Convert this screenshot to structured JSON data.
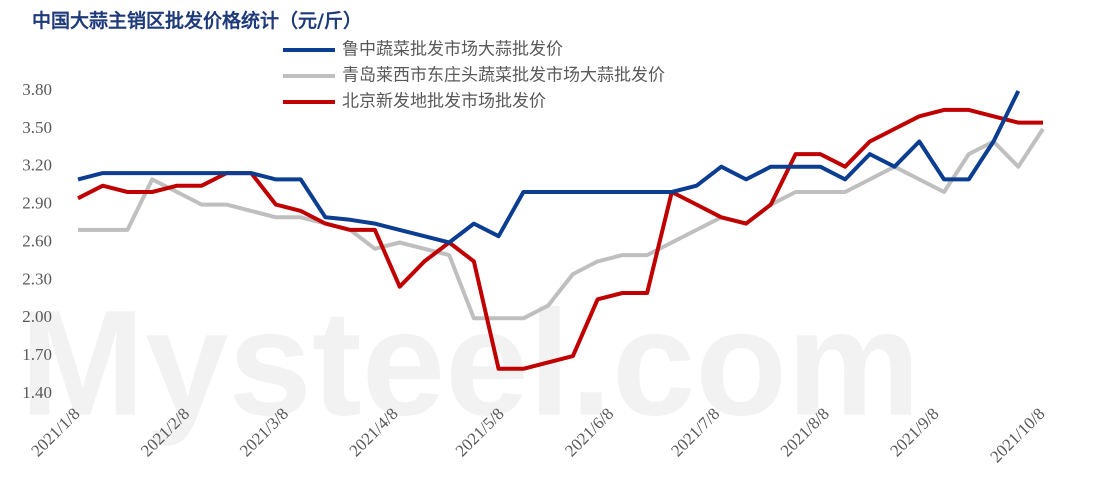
{
  "chart_data": {
    "type": "line",
    "title": "中国大蒜主销区批发价格统计（元/斤）",
    "watermark": "Mysteel.com",
    "x": [
      "2021/1/8",
      "2021/1/15",
      "2021/1/22",
      "2021/1/29",
      "2021/2/5",
      "2021/2/12",
      "2021/2/19",
      "2021/2/26",
      "2021/3/5",
      "2021/3/12",
      "2021/3/19",
      "2021/3/26",
      "2021/4/2",
      "2021/4/9",
      "2021/4/16",
      "2021/4/23",
      "2021/4/30",
      "2021/5/7",
      "2021/5/14",
      "2021/5/21",
      "2021/5/28",
      "2021/6/4",
      "2021/6/11",
      "2021/6/18",
      "2021/6/25",
      "2021/7/2",
      "2021/7/9",
      "2021/7/16",
      "2021/7/23",
      "2021/7/30",
      "2021/8/6",
      "2021/8/13",
      "2021/8/20",
      "2021/8/27",
      "2021/9/3",
      "2021/9/10",
      "2021/9/17",
      "2021/9/24",
      "2021/10/1",
      "2021/10/8"
    ],
    "series": [
      {
        "name": "鲁中蔬菜批发市场大蒜批发价",
        "color": "#0b3d91",
        "values": [
          3.1,
          3.15,
          3.15,
          3.15,
          3.15,
          3.15,
          3.15,
          3.15,
          3.1,
          3.1,
          2.8,
          2.78,
          2.75,
          2.7,
          2.65,
          2.6,
          2.75,
          2.65,
          3.0,
          3.0,
          3.0,
          3.0,
          3.0,
          3.0,
          3.0,
          3.05,
          3.2,
          3.1,
          3.2,
          3.2,
          3.2,
          3.1,
          3.3,
          3.2,
          3.4,
          3.1,
          3.1,
          3.4,
          3.8,
          null
        ]
      },
      {
        "name": "青岛莱西市东庄头蔬菜批发市场大蒜批发价",
        "color": "#bfbfbf",
        "values": [
          2.7,
          2.7,
          2.7,
          3.1,
          3.0,
          2.9,
          2.9,
          2.85,
          2.8,
          2.8,
          2.75,
          2.7,
          2.55,
          2.6,
          2.55,
          2.5,
          2.0,
          2.0,
          2.0,
          2.1,
          2.35,
          2.45,
          2.5,
          2.5,
          2.6,
          2.7,
          2.8,
          2.75,
          2.9,
          3.0,
          3.0,
          3.0,
          3.1,
          3.2,
          3.1,
          3.0,
          3.3,
          3.4,
          3.2,
          3.5
        ]
      },
      {
        "name": "北京新发地批发市场批发价",
        "color": "#c00000",
        "values": [
          2.95,
          3.05,
          3.0,
          3.0,
          3.05,
          3.05,
          3.15,
          3.15,
          2.9,
          2.85,
          2.75,
          2.7,
          2.7,
          2.25,
          2.45,
          2.6,
          2.45,
          1.6,
          1.6,
          1.65,
          1.7,
          2.15,
          2.2,
          2.2,
          3.0,
          2.9,
          2.8,
          2.75,
          2.9,
          3.3,
          3.3,
          3.2,
          3.4,
          3.5,
          3.6,
          3.65,
          3.65,
          3.6,
          3.55,
          3.55
        ]
      }
    ],
    "xlim": [
      "2021/1/8",
      "2021/10/8"
    ],
    "xticks": [
      "2021/1/8",
      "2021/2/8",
      "2021/3/8",
      "2021/4/8",
      "2021/5/8",
      "2021/6/8",
      "2021/7/8",
      "2021/8/8",
      "2021/9/8",
      "2021/10/8"
    ],
    "ylim": [
      1.4,
      3.8
    ],
    "yticks": [
      {
        "value": 1.4,
        "label": "1.40"
      },
      {
        "value": 1.7,
        "label": "1.70"
      },
      {
        "value": 2.0,
        "label": "2.00"
      },
      {
        "value": 2.3,
        "label": "2.30"
      },
      {
        "value": 2.6,
        "label": "2.60"
      },
      {
        "value": 2.9,
        "label": "2.90"
      },
      {
        "value": 3.2,
        "label": "3.20"
      },
      {
        "value": 3.5,
        "label": "3.50"
      },
      {
        "value": 3.8,
        "label": "3.80"
      }
    ],
    "grid": false
  }
}
